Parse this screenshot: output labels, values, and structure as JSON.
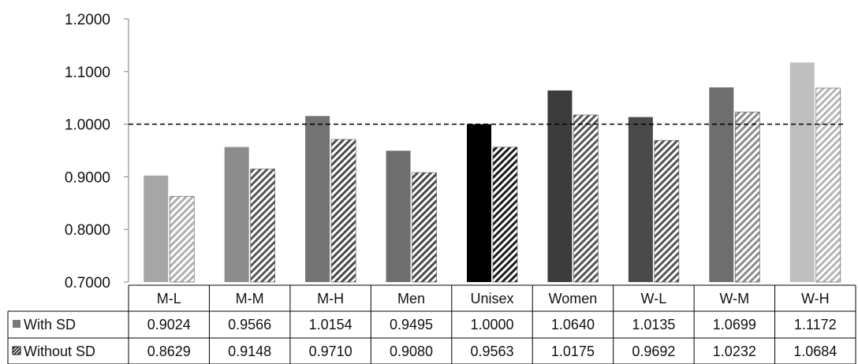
{
  "chart_data": {
    "type": "bar",
    "categories": [
      "M-L",
      "M-M",
      "M-H",
      "Men",
      "Unisex",
      "Women",
      "W-L",
      "W-M",
      "W-H"
    ],
    "series": [
      {
        "name": "With SD",
        "values": [
          0.9024,
          0.9566,
          1.0154,
          0.9495,
          1.0,
          1.064,
          1.0135,
          1.0699,
          1.1172
        ],
        "value_labels": [
          "0.9024",
          "0.9566",
          "1.0154",
          "0.9495",
          "1.0000",
          "1.0640",
          "1.0135",
          "1.0699",
          "1.1172"
        ],
        "colors": [
          "#a6a6a6",
          "#8c8c8c",
          "#737373",
          "#6e6e6e",
          "#000000",
          "#3c3c3c",
          "#4a4a4a",
          "#6e6e6e",
          "#bfbfbf"
        ]
      },
      {
        "name": "Without SD",
        "values": [
          0.8629,
          0.9148,
          0.971,
          0.908,
          0.9563,
          1.0175,
          0.9692,
          1.0232,
          1.0684
        ],
        "value_labels": [
          "0.8629",
          "0.9148",
          "0.9710",
          "0.9080",
          "0.9563",
          "1.0175",
          "0.9692",
          "1.0232",
          "1.0684"
        ],
        "colors": [
          "#b0b0b0",
          "#555555",
          "#4a4a4a",
          "#4a4a4a",
          "#1a1a1a",
          "#555555",
          "#555555",
          "#8c8c8c",
          "#b5b5b5"
        ],
        "pattern": "diagonal-hatch"
      }
    ],
    "y_ticks": [
      "0.7000",
      "0.8000",
      "0.9000",
      "1.0000",
      "1.1000",
      "1.2000"
    ],
    "ylim": [
      0.7,
      1.2
    ],
    "reference_line": {
      "value": 1.0,
      "style": "dashed"
    },
    "legend": "data-table-rows",
    "grid": false,
    "title": "",
    "xlabel": "",
    "ylabel": ""
  }
}
